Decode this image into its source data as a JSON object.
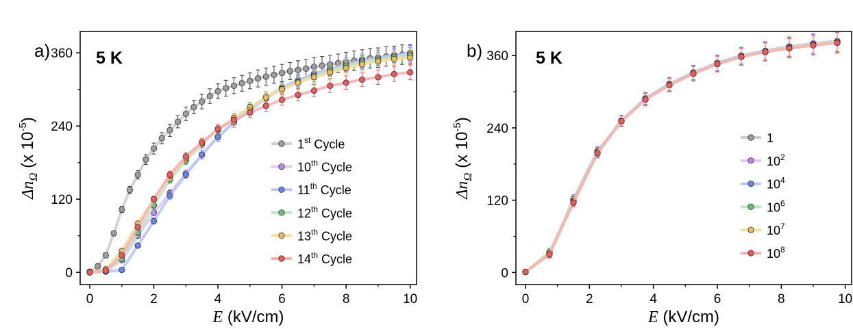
{
  "chart_data": [
    {
      "type": "line",
      "panel_label": "a)",
      "annotation": "5 K",
      "xlabel": "E (kV/cm)",
      "ylabel": "Δn_Ω (x 10-5)",
      "xlim": [
        -0.3,
        10.2
      ],
      "ylim": [
        -20,
        395
      ],
      "x_ticks": [
        0,
        2,
        4,
        6,
        8,
        10
      ],
      "y_ticks": [
        0,
        120,
        240,
        360
      ],
      "legend_position": "bottom-right",
      "series": [
        {
          "name": "1st Cycle",
          "name_base": "1",
          "name_sup": "st",
          "name_rest": " Cycle",
          "line_color": "#cfcfcf",
          "marker_color": "#9e9e9e",
          "x": [
            0,
            0.25,
            0.5,
            0.75,
            1,
            1.25,
            1.5,
            1.75,
            2,
            2.25,
            2.5,
            2.75,
            3,
            3.25,
            3.5,
            3.75,
            4,
            4.25,
            4.5,
            4.75,
            5,
            5.25,
            5.5,
            5.75,
            6,
            6.25,
            6.5,
            6.75,
            7,
            7.25,
            7.5,
            7.75,
            8,
            8.25,
            8.5,
            8.75,
            9,
            9.25,
            9.5,
            9.75,
            10
          ],
          "y": [
            1,
            10,
            28,
            64,
            103,
            135,
            160,
            185,
            203,
            220,
            233,
            247,
            260,
            271,
            280,
            289,
            297,
            302,
            306,
            310,
            314,
            318,
            321,
            324,
            327,
            330,
            332,
            334,
            337,
            339,
            341,
            343,
            345,
            347,
            349,
            351,
            352,
            354,
            355,
            357,
            358
          ],
          "err": [
            4,
            4,
            4,
            4,
            5,
            6,
            7,
            8,
            9,
            9,
            10,
            10,
            11,
            11,
            12,
            12,
            12,
            13,
            13,
            13,
            13,
            14,
            14,
            14,
            14,
            14,
            15,
            15,
            15,
            15,
            15,
            15,
            16,
            16,
            16,
            16,
            16,
            16,
            16,
            16,
            16
          ]
        },
        {
          "name": "10th Cycle",
          "name_base": "10",
          "name_sup": "th",
          "name_rest": " Cycle",
          "line_color": "#e2c6f5",
          "marker_color": "#b98be3",
          "x": [
            0,
            0.5,
            1,
            1.5,
            2,
            2.5,
            3,
            3.5,
            4,
            4.5,
            5,
            5.5,
            6,
            6.5,
            7,
            7.5,
            8,
            8.5,
            9,
            9.5,
            10
          ],
          "y": [
            0,
            2,
            20,
            60,
            98,
            130,
            162,
            193,
            222,
            246,
            266,
            285,
            301,
            313,
            323,
            332,
            339,
            345,
            350,
            354,
            357
          ],
          "err": [
            3,
            3,
            3,
            4,
            5,
            6,
            6,
            7,
            7,
            8,
            8,
            9,
            9,
            10,
            10,
            10,
            10,
            11,
            11,
            12,
            12
          ]
        },
        {
          "name": "11th Cycle",
          "name_base": "11",
          "name_sup": "th",
          "name_rest": " Cycle",
          "line_color": "#b9c6f2",
          "marker_color": "#6a84e8",
          "x": [
            0,
            0.5,
            1,
            1.5,
            2,
            2.5,
            3,
            3.5,
            4,
            4.5,
            5,
            5.5,
            6,
            6.5,
            7,
            7.5,
            8,
            8.5,
            9,
            9.5,
            10
          ],
          "y": [
            0,
            1,
            4,
            44,
            84,
            126,
            160,
            193,
            222,
            246,
            268,
            287,
            303,
            315,
            326,
            334,
            341,
            347,
            352,
            356,
            360
          ],
          "err": [
            3,
            3,
            3,
            4,
            5,
            6,
            6,
            7,
            7,
            8,
            8,
            9,
            9,
            10,
            10,
            11,
            11,
            11,
            12,
            12,
            12
          ]
        },
        {
          "name": "12th Cycle",
          "name_base": "12",
          "name_sup": "th",
          "name_rest": " Cycle",
          "line_color": "#bfe3c6",
          "marker_color": "#6cc07a",
          "x": [
            0,
            0.5,
            1,
            1.5,
            2,
            2.5,
            3,
            3.5,
            4,
            4.5,
            5,
            5.5,
            6,
            6.5,
            7,
            7.5,
            8,
            8.5,
            9,
            9.5,
            10
          ],
          "y": [
            0,
            3,
            22,
            65,
            110,
            152,
            183,
            210,
            234,
            252,
            270,
            287,
            301,
            312,
            322,
            331,
            338,
            344,
            349,
            353,
            356
          ],
          "err": [
            3,
            3,
            3,
            4,
            5,
            6,
            6,
            7,
            7,
            8,
            8,
            9,
            9,
            10,
            10,
            10,
            10,
            11,
            11,
            11,
            12
          ]
        },
        {
          "name": "13th Cycle",
          "name_base": "13",
          "name_sup": "th",
          "name_rest": " Cycle",
          "line_color": "#f3dea0",
          "marker_color": "#e6bb58",
          "x": [
            0,
            0.5,
            1,
            1.5,
            2,
            2.5,
            3,
            3.5,
            4,
            4.5,
            5,
            5.5,
            6,
            6.5,
            7,
            7.5,
            8,
            8.5,
            9,
            9.5,
            10
          ],
          "y": [
            0,
            5,
            35,
            80,
            120,
            158,
            187,
            213,
            235,
            253,
            271,
            287,
            300,
            311,
            320,
            328,
            335,
            341,
            346,
            350,
            352
          ],
          "err": [
            3,
            3,
            3,
            4,
            5,
            6,
            6,
            7,
            7,
            8,
            8,
            9,
            9,
            10,
            10,
            10,
            10,
            11,
            11,
            11,
            11
          ]
        },
        {
          "name": "14th Cycle",
          "name_base": "14",
          "name_sup": "th",
          "name_rest": " Cycle",
          "line_color": "#f6b1b1",
          "marker_color": "#ec5a5a",
          "x": [
            0,
            0.5,
            1,
            1.5,
            2,
            2.5,
            3,
            3.5,
            4,
            4.5,
            5,
            5.5,
            6,
            6.5,
            7,
            7.5,
            8,
            8.5,
            9,
            9.5,
            10
          ],
          "y": [
            0,
            3,
            28,
            74,
            120,
            160,
            190,
            213,
            235,
            250,
            262,
            273,
            283,
            291,
            298,
            306,
            311,
            316,
            320,
            325,
            328
          ],
          "err": [
            3,
            3,
            3,
            4,
            5,
            6,
            6,
            7,
            7,
            8,
            8,
            9,
            9,
            10,
            10,
            11,
            11,
            11,
            12,
            12,
            12
          ]
        }
      ]
    },
    {
      "type": "line",
      "panel_label": "b)",
      "annotation": "5 K",
      "xlabel": "E (kV/cm)",
      "ylabel": "Δn_Ω (x 10-5)",
      "xlim": [
        -0.3,
        10.2
      ],
      "ylim": [
        -20,
        400
      ],
      "x_ticks": [
        0,
        2,
        4,
        6,
        8,
        10
      ],
      "y_ticks": [
        0,
        120,
        240,
        360
      ],
      "legend_position": "bottom-right",
      "series": [
        {
          "name": "1",
          "name_base": "1",
          "name_sup": "",
          "name_rest": "",
          "line_color": "#cfcfcf",
          "marker_color": "#9e9e9e",
          "x": [
            0,
            0.75,
            1.5,
            2.25,
            3,
            3.75,
            4.5,
            5.25,
            6,
            6.75,
            7.5,
            8.25,
            9,
            9.75
          ],
          "y": [
            1,
            33,
            120,
            200,
            252,
            288,
            312,
            331,
            347,
            359,
            367,
            373,
            378,
            382
          ],
          "err": [
            3,
            6,
            7,
            8,
            9,
            10,
            11,
            12,
            13,
            14,
            15,
            16,
            16,
            17
          ]
        },
        {
          "name": "102",
          "name_base": "10",
          "name_sup": "2",
          "name_rest": "",
          "line_color": "#e2c6f5",
          "marker_color": "#b98be3",
          "x": [
            0,
            0.75,
            1.5,
            2.25,
            3,
            3.75,
            4.5,
            5.25,
            6,
            6.75,
            7.5,
            8.25,
            9,
            9.75
          ],
          "y": [
            1,
            32,
            119,
            199,
            252,
            288,
            312,
            331,
            347,
            359,
            367,
            374,
            379,
            383
          ],
          "err": [
            3,
            6,
            7,
            8,
            9,
            10,
            11,
            12,
            13,
            14,
            15,
            16,
            16,
            17
          ]
        },
        {
          "name": "104",
          "name_base": "10",
          "name_sup": "4",
          "name_rest": "",
          "line_color": "#b9c6f2",
          "marker_color": "#6a84e8",
          "x": [
            0,
            0.75,
            1.5,
            2.25,
            3,
            3.75,
            4.5,
            5.25,
            6,
            6.75,
            7.5,
            8.25,
            9,
            9.75
          ],
          "y": [
            1,
            31,
            122,
            201,
            252,
            289,
            313,
            332,
            348,
            360,
            368,
            375,
            380,
            384
          ],
          "err": [
            3,
            6,
            7,
            8,
            9,
            10,
            11,
            12,
            13,
            14,
            15,
            16,
            17,
            17
          ]
        },
        {
          "name": "106",
          "name_base": "10",
          "name_sup": "6",
          "name_rest": "",
          "line_color": "#bfe3c6",
          "marker_color": "#6cc07a",
          "x": [
            0,
            0.75,
            1.5,
            2.25,
            3,
            3.75,
            4.5,
            5.25,
            6,
            6.75,
            7.5,
            8.25,
            9,
            9.75
          ],
          "y": [
            1,
            34,
            118,
            199,
            251,
            287,
            311,
            330,
            346,
            358,
            366,
            373,
            378,
            382
          ],
          "err": [
            3,
            6,
            7,
            8,
            9,
            10,
            11,
            12,
            13,
            14,
            15,
            16,
            16,
            17
          ]
        },
        {
          "name": "107",
          "name_base": "10",
          "name_sup": "7",
          "name_rest": "",
          "line_color": "#f3dea0",
          "marker_color": "#e6bb58",
          "x": [
            0,
            0.75,
            1.5,
            2.25,
            3,
            3.75,
            4.5,
            5.25,
            6,
            6.75,
            7.5,
            8.25,
            9,
            9.75
          ],
          "y": [
            1,
            31,
            117,
            198,
            251,
            287,
            311,
            330,
            346,
            358,
            366,
            373,
            378,
            382
          ],
          "err": [
            3,
            6,
            7,
            8,
            9,
            10,
            11,
            12,
            13,
            14,
            15,
            16,
            16,
            17
          ]
        },
        {
          "name": "108",
          "name_base": "10",
          "name_sup": "8",
          "name_rest": "",
          "line_color": "#f6b1b1",
          "marker_color": "#ec5a5a",
          "x": [
            0,
            0.75,
            1.5,
            2.25,
            3,
            3.75,
            4.5,
            5.25,
            6,
            6.75,
            7.5,
            8.25,
            9,
            9.75
          ],
          "y": [
            1,
            30,
            116,
            198,
            251,
            287,
            311,
            330,
            346,
            358,
            366,
            372,
            377,
            381
          ],
          "err": [
            3,
            6,
            7,
            8,
            9,
            10,
            11,
            12,
            13,
            14,
            15,
            16,
            16,
            17
          ]
        }
      ]
    }
  ]
}
